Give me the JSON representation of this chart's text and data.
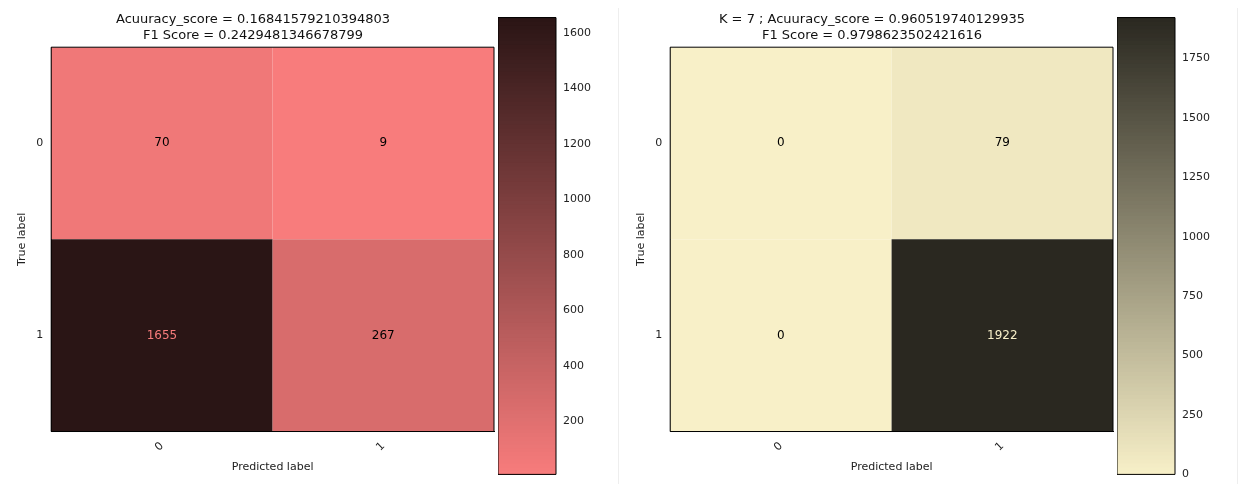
{
  "chart_data": [
    {
      "type": "heatmap",
      "title": "Acuuracy_score = 0.16841579210394803\nF1 Score = 0.2429481346678799",
      "xlabel": "Predicted label",
      "ylabel": "True label",
      "categories": [
        "0",
        "1"
      ],
      "y_categories": [
        "0",
        "1"
      ],
      "cells": [
        [
          70,
          9
        ],
        [
          1655,
          267
        ]
      ],
      "colors": [
        "#f87c7c",
        "#2a1515"
      ],
      "clim": [
        9,
        1655
      ],
      "cticks": [
        200,
        400,
        600,
        800,
        1000,
        1200,
        1400,
        1600
      ],
      "data_labels": true,
      "legend": false
    },
    {
      "type": "heatmap",
      "title": "K = 7 ; Acuuracy_score = 0.960519740129935\nF1 Score = 0.9798623502421616",
      "xlabel": "Predicted label",
      "ylabel": "True label",
      "categories": [
        "0",
        "1"
      ],
      "y_categories": [
        "0",
        "1"
      ],
      "cells": [
        [
          0,
          79
        ],
        [
          0,
          1922
        ]
      ],
      "colors": [
        "#f8f0c8",
        "#2a2820"
      ],
      "clim": [
        0,
        1922
      ],
      "cticks": [
        0,
        250,
        500,
        750,
        1000,
        1250,
        1500,
        1750
      ],
      "data_labels": true,
      "legend": false
    }
  ]
}
